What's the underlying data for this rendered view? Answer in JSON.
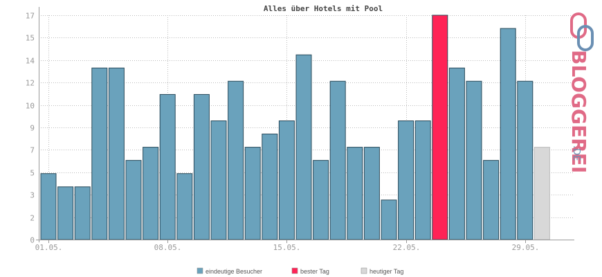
{
  "chart_data": {
    "type": "bar",
    "title": "Alles über Hotels mit Pool",
    "xlabel": "",
    "ylabel": "",
    "ylim": [
      0,
      17
    ],
    "y_ticks": [
      "0",
      "2",
      "3",
      "5",
      "7",
      "9",
      "10",
      "12",
      "14",
      "15",
      "17"
    ],
    "y_tick_values": [
      0,
      1.7,
      3.4,
      5.1,
      6.8,
      8.5,
      10.2,
      11.9,
      13.6,
      15.3,
      17
    ],
    "x_tick_labels": [
      {
        "index": 1,
        "label": "01.05."
      },
      {
        "index": 8,
        "label": "08.05."
      },
      {
        "index": 15,
        "label": "15.05."
      },
      {
        "index": 22,
        "label": "22.05."
      },
      {
        "index": 29,
        "label": "29.05."
      }
    ],
    "days": [
      1,
      2,
      3,
      4,
      5,
      6,
      7,
      8,
      9,
      10,
      11,
      12,
      13,
      14,
      15,
      16,
      17,
      18,
      19,
      20,
      21,
      22,
      23,
      24,
      25,
      26,
      27,
      28,
      29,
      30
    ],
    "values": [
      5,
      4,
      4,
      13,
      13,
      6,
      7,
      11,
      5,
      11,
      9,
      12,
      7,
      8,
      9,
      14,
      6,
      12,
      7,
      7,
      3,
      9,
      9,
      17,
      13,
      12,
      6,
      16,
      12,
      7
    ],
    "best_index": 23,
    "today_index": 29,
    "grid": true,
    "legend_position": "bottom",
    "colors": {
      "regular": "#6aa2bc",
      "best": "#ff2356",
      "today": "#d8d8d8",
      "bar_stroke": "#2a4a5a",
      "grid": "#bbbbbb"
    },
    "legend": [
      {
        "label": "eindeutige Besucher",
        "color": "#6aa2bc"
      },
      {
        "label": "bester Tag",
        "color": "#ff2356"
      },
      {
        "label": "heutiger Tag",
        "color": "#d8d8d8"
      }
    ]
  },
  "logo": {
    "text": "BLOGGEREI",
    "suffix": ".DE"
  }
}
